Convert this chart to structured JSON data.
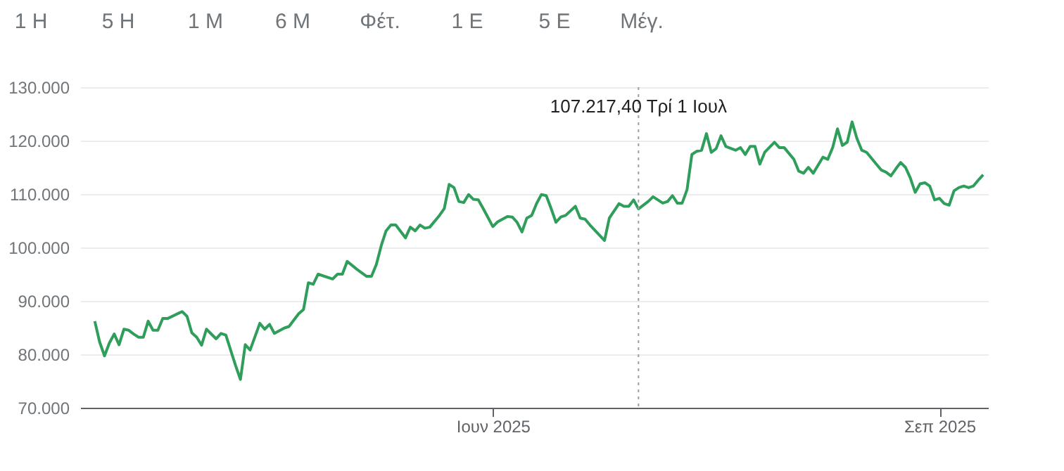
{
  "chart_data": {
    "type": "line",
    "x": [
      "2025-03-11",
      "2025-03-12",
      "2025-03-13",
      "2025-03-14",
      "2025-03-15",
      "2025-03-16",
      "2025-03-17",
      "2025-03-18",
      "2025-03-19",
      "2025-03-20",
      "2025-03-21",
      "2025-03-22",
      "2025-03-23",
      "2025-03-24",
      "2025-03-25",
      "2025-03-26",
      "2025-03-29",
      "2025-03-30",
      "2025-03-31",
      "2025-04-01",
      "2025-04-02",
      "2025-04-03",
      "2025-04-05",
      "2025-04-06",
      "2025-04-07",
      "2025-04-09",
      "2025-04-10",
      "2025-04-11",
      "2025-04-12",
      "2025-04-14",
      "2025-04-15",
      "2025-04-16",
      "2025-04-17",
      "2025-04-19",
      "2025-04-20",
      "2025-04-22",
      "2025-04-23",
      "2025-04-24",
      "2025-04-25",
      "2025-04-26",
      "2025-04-29",
      "2025-04-30",
      "2025-05-01",
      "2025-05-02",
      "2025-05-04",
      "2025-05-06",
      "2025-05-07",
      "2025-05-08",
      "2025-05-09",
      "2025-05-10",
      "2025-05-11",
      "2025-05-12",
      "2025-05-14",
      "2025-05-15",
      "2025-05-16",
      "2025-05-17",
      "2025-05-18",
      "2025-05-19",
      "2025-05-21",
      "2025-05-22",
      "2025-05-23",
      "2025-05-24",
      "2025-05-25",
      "2025-05-26",
      "2025-05-27",
      "2025-05-28",
      "2025-05-29",
      "2025-05-30",
      "2025-06-01",
      "2025-06-02",
      "2025-06-04",
      "2025-06-05",
      "2025-06-06",
      "2025-06-07",
      "2025-06-08",
      "2025-06-09",
      "2025-06-10",
      "2025-06-11",
      "2025-06-12",
      "2025-06-13",
      "2025-06-14",
      "2025-06-15",
      "2025-06-16",
      "2025-06-18",
      "2025-06-19",
      "2025-06-20",
      "2025-06-21",
      "2025-06-24",
      "2025-06-25",
      "2025-06-27",
      "2025-06-28",
      "2025-06-29",
      "2025-06-30",
      "2025-07-01",
      "2025-07-03",
      "2025-07-04",
      "2025-07-06",
      "2025-07-07",
      "2025-07-08",
      "2025-07-09",
      "2025-07-10",
      "2025-07-11",
      "2025-07-12",
      "2025-07-13",
      "2025-07-14",
      "2025-07-15",
      "2025-07-16",
      "2025-07-17",
      "2025-07-18",
      "2025-07-19",
      "2025-07-21",
      "2025-07-22",
      "2025-07-23",
      "2025-07-24",
      "2025-07-25",
      "2025-07-26",
      "2025-07-27",
      "2025-07-29",
      "2025-07-30",
      "2025-07-31",
      "2025-08-02",
      "2025-08-03",
      "2025-08-04",
      "2025-08-05",
      "2025-08-06",
      "2025-08-08",
      "2025-08-09",
      "2025-08-10",
      "2025-08-11",
      "2025-08-12",
      "2025-08-13",
      "2025-08-14",
      "2025-08-15",
      "2025-08-16",
      "2025-08-17",
      "2025-08-19",
      "2025-08-20",
      "2025-08-21",
      "2025-08-22",
      "2025-08-23",
      "2025-08-24",
      "2025-08-25",
      "2025-08-26",
      "2025-08-27",
      "2025-08-28",
      "2025-08-29",
      "2025-08-30",
      "2025-08-31",
      "2025-09-01",
      "2025-09-02",
      "2025-09-03",
      "2025-09-04",
      "2025-09-05",
      "2025-09-06",
      "2025-09-07",
      "2025-09-08",
      "2025-09-09",
      "2025-09-10"
    ],
    "series": [
      {
        "color": "#2f9e5b",
        "values": [
          86200,
          82300,
          79700,
          82100,
          83800,
          81800,
          84700,
          84500,
          83800,
          83200,
          83200,
          86200,
          84500,
          84500,
          86700,
          86700,
          88000,
          87100,
          84000,
          83200,
          81700,
          84700,
          82900,
          83900,
          83600,
          77900,
          75300,
          81800,
          80800,
          85800,
          84700,
          85600,
          83900,
          84900,
          85200,
          87600,
          88400,
          93400,
          93100,
          95000,
          94100,
          95000,
          95000,
          97400,
          95900,
          94600,
          94600,
          96800,
          100300,
          103100,
          104200,
          104200,
          101800,
          103800,
          103100,
          104200,
          103600,
          103800,
          106000,
          107300,
          111800,
          111200,
          108600,
          108400,
          109900,
          109000,
          108900,
          107300,
          103900,
          104800,
          105800,
          105700,
          104700,
          102900,
          105500,
          106000,
          108200,
          109900,
          109700,
          107300,
          104700,
          105700,
          106000,
          107700,
          105500,
          105300,
          104200,
          101300,
          105500,
          108200,
          107700,
          107700,
          108900,
          107217.4,
          108600,
          109500,
          108300,
          108600,
          109700,
          108300,
          108300,
          110800,
          117400,
          118000,
          118200,
          121300,
          117800,
          118500,
          120900,
          118900,
          118200,
          118700,
          117400,
          118900,
          118900,
          115600,
          117800,
          119700,
          118700,
          118700,
          116500,
          114300,
          113900,
          115000,
          113900,
          116900,
          116500,
          118700,
          122200,
          119100,
          119700,
          123500,
          120400,
          118200,
          117800,
          115600,
          114500,
          114100,
          113400,
          114700,
          115900,
          115000,
          113000,
          110300,
          111900,
          112100,
          111500,
          108900,
          109200,
          108200,
          107900,
          110600,
          111200,
          111500,
          111200,
          111500,
          112600,
          113600
        ]
      }
    ],
    "xlim": [
      "2025-03-08",
      "2025-09-11"
    ],
    "xticks": [
      {
        "value": "2025-06-01",
        "label": "Ιουν 2025"
      },
      {
        "value": "2025-09-01",
        "label": "Σεπ 2025"
      }
    ],
    "ylim": [
      70000,
      130000
    ],
    "yticks": [
      {
        "value": 70000,
        "label": "70.000"
      },
      {
        "value": 80000,
        "label": "80.000"
      },
      {
        "value": 90000,
        "label": "90.000"
      },
      {
        "value": 100000,
        "label": "100.000"
      },
      {
        "value": 110000,
        "label": "110.000"
      },
      {
        "value": 120000,
        "label": "120.000"
      },
      {
        "value": 130000,
        "label": "130.000"
      }
    ],
    "grid": "y",
    "line_style": "solid",
    "ref_lines": [
      {
        "axis": "x",
        "value": "2025-07-01",
        "color": "#9e9e9e",
        "line_style": "dotted",
        "label": "107.217,40  Τρί 1 Ιουλ"
      }
    ],
    "annotations": [
      "1 Η",
      "5 Η",
      "1 Μ",
      "6 Μ",
      "Φέτ.",
      "1 Ε",
      "5 Ε",
      "Μέγ."
    ]
  }
}
